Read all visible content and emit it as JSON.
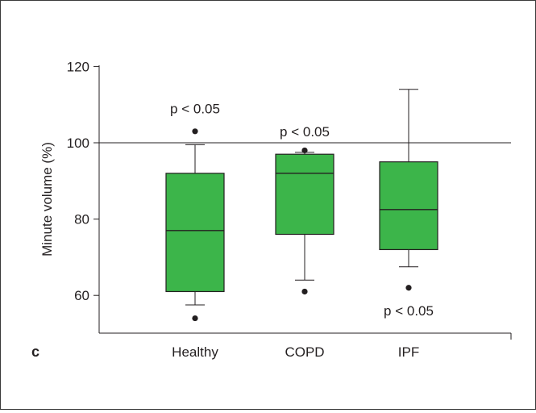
{
  "chart_data": {
    "type": "box",
    "panel_label": "c",
    "ylabel": "Minute volume (%)",
    "ylim": [
      50,
      130
    ],
    "yticks": [
      60,
      80,
      100,
      120
    ],
    "reference_line": 100,
    "grid": false,
    "categories": [
      "Healthy",
      "COPD",
      "IPF"
    ],
    "boxes": [
      {
        "category": "Healthy",
        "whisker_low": 57.5,
        "q1": 61,
        "median": 77,
        "q3": 92,
        "whisker_high": 99.5,
        "outliers": [
          54,
          103
        ]
      },
      {
        "category": "COPD",
        "whisker_low": 64,
        "q1": 76,
        "median": 92,
        "q3": 97,
        "whisker_high": 97.5,
        "outliers": [
          61,
          98
        ]
      },
      {
        "category": "IPF",
        "whisker_low": 67.5,
        "q1": 72,
        "median": 82.5,
        "q3": 95,
        "whisker_high": 114,
        "outliers": [
          62
        ]
      }
    ],
    "annotations": [
      {
        "text": "p < 0.05",
        "category": "Healthy",
        "y": 109,
        "position": "above"
      },
      {
        "text": "p < 0.05",
        "category": "COPD",
        "y": 103,
        "position": "above"
      },
      {
        "text": "p < 0.05",
        "category": "IPF",
        "y": 56,
        "position": "below"
      }
    ],
    "box_color": "#3cb54a",
    "line_color": "#231f20"
  }
}
